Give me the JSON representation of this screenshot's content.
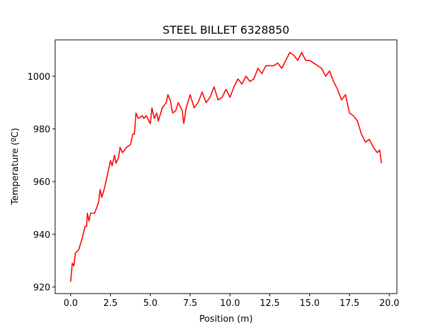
{
  "chart_data": {
    "type": "line",
    "title": "STEEL BILLET 6328850",
    "xlabel": "Position (m)",
    "ylabel": "Temperature (ºC)",
    "color": "#ff0000",
    "x": [
      0.0,
      0.1,
      0.2,
      0.3,
      0.5,
      0.75,
      0.9,
      1.0,
      1.05,
      1.15,
      1.25,
      1.5,
      1.75,
      1.85,
      1.95,
      2.1,
      2.25,
      2.5,
      2.6,
      2.75,
      2.85,
      3.0,
      3.1,
      3.25,
      3.5,
      3.75,
      3.9,
      4.0,
      4.1,
      4.25,
      4.5,
      4.6,
      4.75,
      5.0,
      5.1,
      5.25,
      5.4,
      5.5,
      5.75,
      6.0,
      6.1,
      6.25,
      6.4,
      6.6,
      6.75,
      7.0,
      7.1,
      7.25,
      7.5,
      7.75,
      8.0,
      8.25,
      8.5,
      8.75,
      9.0,
      9.25,
      9.5,
      9.75,
      10.0,
      10.25,
      10.5,
      10.75,
      11.0,
      11.25,
      11.5,
      11.75,
      12.0,
      12.25,
      12.5,
      12.75,
      13.0,
      13.25,
      13.5,
      13.75,
      14.0,
      14.25,
      14.5,
      14.75,
      15.0,
      15.25,
      15.5,
      15.75,
      16.0,
      16.25,
      16.5,
      16.75,
      17.0,
      17.25,
      17.5,
      17.75,
      18.0,
      18.25,
      18.5,
      18.75,
      19.0,
      19.25,
      19.4,
      19.5
    ],
    "values": [
      922,
      929,
      928,
      933,
      934,
      939,
      943,
      943,
      948,
      945,
      948,
      948,
      952,
      957,
      954,
      957,
      961,
      968,
      966,
      970,
      967,
      969,
      973,
      971,
      973,
      974,
      978,
      978,
      986,
      984,
      985,
      984,
      985,
      982,
      988,
      984,
      986,
      983,
      988,
      990,
      993,
      991,
      986,
      987,
      990,
      987,
      982,
      988,
      993,
      988,
      990,
      994,
      990,
      992,
      996,
      991,
      992,
      995,
      992,
      996,
      999,
      997,
      1000,
      998,
      999,
      1003,
      1001,
      1004,
      1004,
      1004,
      1005,
      1003,
      1006,
      1009,
      1008,
      1006,
      1009,
      1006,
      1006,
      1005,
      1004,
      1003,
      1000,
      1002,
      998,
      995,
      991,
      993,
      986,
      985,
      983,
      978,
      975,
      976,
      973,
      971,
      972,
      967
    ],
    "xlim": [
      -0.975,
      20.475
    ],
    "ylim": [
      917.5,
      1013.8
    ],
    "xticks": [
      {
        "value": 0,
        "label": "0.0"
      },
      2.5,
      {
        "value": 5,
        "label": "5.0"
      },
      7.5,
      {
        "value": 10,
        "label": "10.0"
      },
      12.5,
      {
        "value": 15,
        "label": "15.0"
      },
      17.5,
      {
        "value": 20,
        "label": "20.0"
      }
    ],
    "yticks": [
      920,
      940,
      960,
      980,
      1000
    ]
  }
}
